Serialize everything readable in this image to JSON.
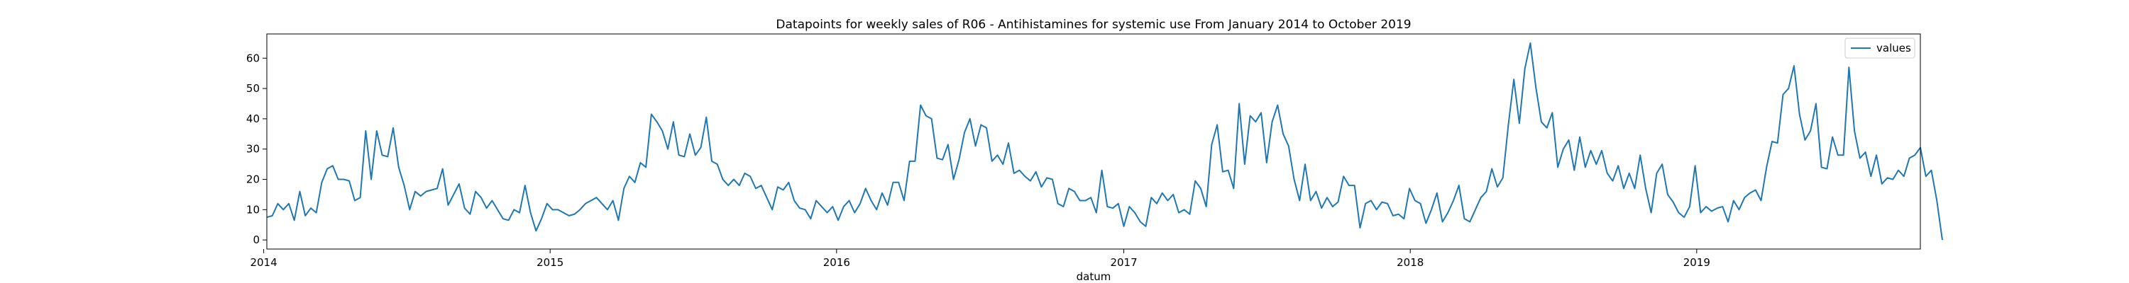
{
  "chart_data": {
    "type": "line",
    "title": "Datapoints for weekly sales of R06 - Antihistamines for systemic use From January 2014 to October 2019",
    "xlabel": "datum",
    "ylabel": "",
    "xlim": [
      "2014-01-05",
      "2019-10-13"
    ],
    "ylim": [
      -3,
      68
    ],
    "x_start": "2014-01-05",
    "x_frequency": "weekly",
    "x_ticks": [
      "2014-01-01",
      "2015-01-01",
      "2016-01-01",
      "2017-01-01",
      "2018-01-01",
      "2019-01-01"
    ],
    "x_tick_labels": [
      "2014",
      "2015",
      "2016",
      "2017",
      "2018",
      "2019"
    ],
    "y_ticks": [
      0,
      10,
      20,
      30,
      40,
      50,
      60
    ],
    "grid": false,
    "legend_position": "top-right",
    "line_color": "#1f77b4",
    "series": [
      {
        "name": "values",
        "values": [
          7.5,
          8,
          12,
          10,
          12,
          6.5,
          16,
          8,
          10.5,
          9,
          19,
          23.5,
          24.5,
          20,
          20,
          19.5,
          13,
          14,
          36,
          20,
          36,
          28,
          27.5,
          37,
          24,
          18,
          10,
          16,
          14.5,
          16,
          16.5,
          17,
          23.5,
          11.5,
          15,
          18.5,
          10.5,
          8.5,
          16,
          14,
          10.5,
          13,
          10,
          7,
          6.5,
          10,
          9,
          18,
          9,
          3,
          7,
          12,
          10,
          10,
          9,
          8,
          8.5,
          10,
          12,
          13,
          14,
          12,
          10,
          13,
          6.5,
          17,
          21,
          19,
          25.5,
          24,
          41.5,
          39,
          36,
          30,
          39,
          28,
          27.5,
          35,
          28,
          30.5,
          40.5,
          26,
          25,
          20,
          18,
          20,
          18,
          22,
          21,
          17,
          18,
          14,
          10,
          17.5,
          16.5,
          19,
          13,
          10.5,
          10,
          7,
          13,
          11,
          9,
          11,
          6.5,
          11,
          13,
          9,
          12,
          17,
          13,
          10,
          15.5,
          11.5,
          19,
          19,
          13,
          26,
          26,
          44.5,
          41,
          40,
          27,
          26.5,
          31.5,
          20,
          26.5,
          35.5,
          40,
          31,
          38,
          37,
          26,
          28,
          25,
          32,
          22,
          23,
          21,
          19.5,
          22.5,
          17.5,
          20.5,
          20,
          12,
          11,
          17,
          16,
          13,
          13,
          14,
          9,
          23,
          11,
          10.5,
          12,
          4.5,
          11,
          9,
          6,
          4.5,
          14,
          12,
          15.5,
          13,
          15,
          9,
          10,
          8.5,
          19.5,
          17,
          11,
          31.5,
          38,
          22.5,
          23,
          17,
          45,
          25,
          41,
          39,
          42,
          25.5,
          39,
          44.5,
          35,
          31,
          20,
          13,
          25,
          13,
          16,
          10.5,
          14,
          11,
          12.5,
          21,
          18,
          18,
          4,
          12,
          13,
          10,
          12.5,
          12,
          8,
          8.5,
          7,
          17,
          13,
          12,
          5.5,
          10,
          15.5,
          6,
          9,
          13,
          18,
          7,
          6,
          10,
          14,
          16,
          23.5,
          17.5,
          20.5,
          38,
          53,
          38.5,
          56.5,
          65,
          50.5,
          39,
          37,
          42,
          24,
          30,
          33,
          23,
          34,
          24,
          29.5,
          25,
          29.5,
          22,
          19.5,
          24.5,
          17,
          22,
          17,
          28,
          17,
          9,
          22,
          25,
          15,
          12.5,
          9,
          7.5,
          11,
          24.5,
          9,
          11,
          9.5,
          10.5,
          11,
          6,
          13,
          10,
          14,
          15.5,
          16.5,
          13,
          24,
          32.5,
          32,
          48,
          50,
          57.5,
          41.5,
          33,
          36,
          45,
          24,
          23.5,
          34,
          28,
          28,
          57,
          36,
          27,
          29,
          21,
          28,
          18.5,
          20.5,
          20,
          23,
          21,
          27,
          28,
          30.5,
          21,
          23,
          13,
          0
        ]
      }
    ]
  }
}
